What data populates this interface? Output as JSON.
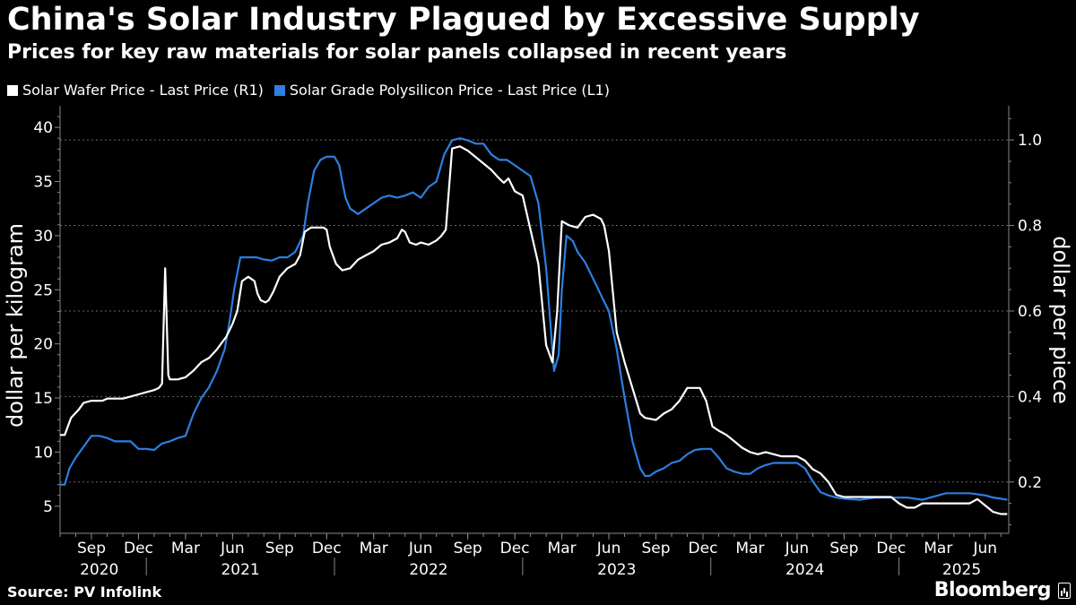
{
  "header": {
    "title": "China's Solar Industry Plagued by Excessive Supply",
    "subtitle": "Prices for key raw materials for solar panels collapsed in recent years"
  },
  "legend": [
    {
      "label": "Solar Wafer Price - Last Price (R1)",
      "color": "#ffffff"
    },
    {
      "label": "Solar Grade Polysilicon Price - Last Price (L1)",
      "color": "#2d7fe0"
    }
  ],
  "footer": {
    "source": "Source: PV Infolink",
    "brand": "Bloomberg"
  },
  "chart_data": {
    "type": "line",
    "title": "China's Solar Industry Plagued by Excessive Supply",
    "x_unit": "months since Jul 2020",
    "ylabel_left": "dollar per kilogram",
    "ylabel_right": "dollar per piece",
    "ylim_left": [
      2.5,
      42
    ],
    "ylim_right": [
      0.08,
      1.08
    ],
    "left_ticks": [
      5,
      10,
      15,
      20,
      25,
      30,
      35,
      40
    ],
    "right_ticks": [
      0.2,
      0.4,
      0.6,
      0.8,
      1.0
    ],
    "right_tick_labels": [
      "0.2",
      "0.4",
      "0.6",
      "0.8",
      "1.0"
    ],
    "grid": "horizontal dashed at right-axis ticks",
    "xlim": [
      0,
      60.5
    ],
    "month_ticks": [
      {
        "label": "Sep",
        "x": 2
      },
      {
        "label": "Dec",
        "x": 5
      },
      {
        "label": "Mar",
        "x": 8
      },
      {
        "label": "Jun",
        "x": 11
      },
      {
        "label": "Sep",
        "x": 14
      },
      {
        "label": "Dec",
        "x": 17
      },
      {
        "label": "Mar",
        "x": 20
      },
      {
        "label": "Jun",
        "x": 23
      },
      {
        "label": "Sep",
        "x": 26
      },
      {
        "label": "Dec",
        "x": 29
      },
      {
        "label": "Mar",
        "x": 32
      },
      {
        "label": "Jun",
        "x": 35
      },
      {
        "label": "Sep",
        "x": 38
      },
      {
        "label": "Dec",
        "x": 41
      },
      {
        "label": "Mar",
        "x": 44
      },
      {
        "label": "Jun",
        "x": 47
      },
      {
        "label": "Sep",
        "x": 50
      },
      {
        "label": "Dec",
        "x": 53
      },
      {
        "label": "Mar",
        "x": 56
      },
      {
        "label": "Jun",
        "x": 59
      }
    ],
    "year_labels": [
      {
        "label": "2020",
        "x": 2.5
      },
      {
        "label": "2021",
        "x": 11.5
      },
      {
        "label": "2022",
        "x": 23.5
      },
      {
        "label": "2023",
        "x": 35.5
      },
      {
        "label": "2024",
        "x": 47.5
      },
      {
        "label": "2025",
        "x": 57.5
      }
    ],
    "year_separators": [
      6,
      18,
      30,
      42,
      54
    ],
    "series": [
      {
        "name": "Solar Wafer Price - Last Price (R1)",
        "axis": "right",
        "color": "#ffffff",
        "points": [
          [
            0,
            0.31
          ],
          [
            0.3,
            0.31
          ],
          [
            0.7,
            0.35
          ],
          [
            1.2,
            0.37
          ],
          [
            1.5,
            0.385
          ],
          [
            2,
            0.39
          ],
          [
            2.7,
            0.39
          ],
          [
            3,
            0.395
          ],
          [
            4,
            0.395
          ],
          [
            4.5,
            0.4
          ],
          [
            5,
            0.405
          ],
          [
            5.5,
            0.41
          ],
          [
            6,
            0.415
          ],
          [
            6.3,
            0.42
          ],
          [
            6.5,
            0.43
          ],
          [
            6.7,
            0.7
          ],
          [
            6.9,
            0.45
          ],
          [
            7,
            0.44
          ],
          [
            7.5,
            0.44
          ],
          [
            8,
            0.445
          ],
          [
            8.5,
            0.46
          ],
          [
            9,
            0.48
          ],
          [
            9.5,
            0.49
          ],
          [
            10,
            0.51
          ],
          [
            10.3,
            0.525
          ],
          [
            10.6,
            0.54
          ],
          [
            11,
            0.57
          ],
          [
            11.3,
            0.6
          ],
          [
            11.6,
            0.67
          ],
          [
            12,
            0.68
          ],
          [
            12.4,
            0.67
          ],
          [
            12.6,
            0.64
          ],
          [
            12.8,
            0.625
          ],
          [
            13.1,
            0.62
          ],
          [
            13.3,
            0.625
          ],
          [
            13.6,
            0.645
          ],
          [
            14,
            0.68
          ],
          [
            14.5,
            0.7
          ],
          [
            15,
            0.71
          ],
          [
            15.3,
            0.73
          ],
          [
            15.6,
            0.785
          ],
          [
            16,
            0.795
          ],
          [
            16.8,
            0.795
          ],
          [
            17,
            0.79
          ],
          [
            17.2,
            0.75
          ],
          [
            17.6,
            0.71
          ],
          [
            18,
            0.695
          ],
          [
            18.5,
            0.7
          ],
          [
            19,
            0.72
          ],
          [
            19.5,
            0.73
          ],
          [
            20,
            0.74
          ],
          [
            20.5,
            0.755
          ],
          [
            21,
            0.76
          ],
          [
            21.5,
            0.77
          ],
          [
            21.8,
            0.79
          ],
          [
            22,
            0.785
          ],
          [
            22.3,
            0.76
          ],
          [
            22.7,
            0.755
          ],
          [
            23,
            0.76
          ],
          [
            23.5,
            0.755
          ],
          [
            24,
            0.765
          ],
          [
            24.3,
            0.775
          ],
          [
            24.6,
            0.79
          ],
          [
            25,
            0.98
          ],
          [
            25.5,
            0.985
          ],
          [
            26,
            0.975
          ],
          [
            26.5,
            0.96
          ],
          [
            27,
            0.945
          ],
          [
            27.5,
            0.93
          ],
          [
            28,
            0.91
          ],
          [
            28.3,
            0.9
          ],
          [
            28.6,
            0.91
          ],
          [
            29,
            0.88
          ],
          [
            29.5,
            0.87
          ],
          [
            30,
            0.79
          ],
          [
            30.5,
            0.71
          ],
          [
            31,
            0.52
          ],
          [
            31.4,
            0.48
          ],
          [
            31.7,
            0.6
          ],
          [
            32,
            0.81
          ],
          [
            32.5,
            0.8
          ],
          [
            33,
            0.795
          ],
          [
            33.5,
            0.82
          ],
          [
            34,
            0.825
          ],
          [
            34.5,
            0.815
          ],
          [
            34.7,
            0.8
          ],
          [
            35,
            0.74
          ],
          [
            35.5,
            0.55
          ],
          [
            36,
            0.48
          ],
          [
            36.5,
            0.42
          ],
          [
            37,
            0.36
          ],
          [
            37.3,
            0.35
          ],
          [
            38,
            0.345
          ],
          [
            38.5,
            0.36
          ],
          [
            39,
            0.37
          ],
          [
            39.5,
            0.39
          ],
          [
            40,
            0.42
          ],
          [
            40.8,
            0.42
          ],
          [
            41.2,
            0.39
          ],
          [
            41.6,
            0.33
          ],
          [
            42,
            0.32
          ],
          [
            42.5,
            0.31
          ],
          [
            43,
            0.295
          ],
          [
            43.5,
            0.28
          ],
          [
            44,
            0.27
          ],
          [
            44.5,
            0.265
          ],
          [
            45,
            0.27
          ],
          [
            46,
            0.26
          ],
          [
            46.5,
            0.26
          ],
          [
            47,
            0.26
          ],
          [
            47.5,
            0.25
          ],
          [
            48,
            0.23
          ],
          [
            48.5,
            0.22
          ],
          [
            49,
            0.2
          ],
          [
            49.5,
            0.17
          ],
          [
            50,
            0.165
          ],
          [
            51,
            0.165
          ],
          [
            52,
            0.165
          ],
          [
            53,
            0.165
          ],
          [
            53.5,
            0.15
          ],
          [
            54,
            0.14
          ],
          [
            54.5,
            0.14
          ],
          [
            55,
            0.15
          ],
          [
            56,
            0.15
          ],
          [
            57,
            0.15
          ],
          [
            58,
            0.15
          ],
          [
            58.5,
            0.16
          ],
          [
            59,
            0.145
          ],
          [
            59.5,
            0.13
          ],
          [
            60,
            0.125
          ],
          [
            60.4,
            0.125
          ]
        ]
      },
      {
        "name": "Solar Grade Polysilicon Price - Last Price (L1)",
        "axis": "left",
        "color": "#2d7fe0",
        "points": [
          [
            0,
            7
          ],
          [
            0.3,
            7
          ],
          [
            0.6,
            8.5
          ],
          [
            1,
            9.5
          ],
          [
            1.5,
            10.5
          ],
          [
            2,
            11.5
          ],
          [
            2.5,
            11.5
          ],
          [
            3,
            11.3
          ],
          [
            3.5,
            11
          ],
          [
            4,
            11
          ],
          [
            4.5,
            11
          ],
          [
            5,
            10.3
          ],
          [
            5.5,
            10.3
          ],
          [
            6,
            10.2
          ],
          [
            6.5,
            10.8
          ],
          [
            7,
            11
          ],
          [
            7.5,
            11.3
          ],
          [
            8,
            11.5
          ],
          [
            8.5,
            13.5
          ],
          [
            9,
            15
          ],
          [
            9.5,
            16
          ],
          [
            10,
            17.5
          ],
          [
            10.5,
            19.5
          ],
          [
            10.8,
            22
          ],
          [
            11.1,
            25
          ],
          [
            11.5,
            28
          ],
          [
            12,
            28
          ],
          [
            12.5,
            28
          ],
          [
            13,
            27.8
          ],
          [
            13.5,
            27.7
          ],
          [
            14,
            28
          ],
          [
            14.5,
            28
          ],
          [
            15,
            28.5
          ],
          [
            15.5,
            30
          ],
          [
            15.8,
            33
          ],
          [
            16.2,
            36
          ],
          [
            16.6,
            37
          ],
          [
            17,
            37.3
          ],
          [
            17.5,
            37.3
          ],
          [
            17.8,
            36.5
          ],
          [
            18.2,
            33.5
          ],
          [
            18.5,
            32.5
          ],
          [
            19,
            32
          ],
          [
            19.5,
            32.5
          ],
          [
            20,
            33
          ],
          [
            20.5,
            33.5
          ],
          [
            21,
            33.7
          ],
          [
            21.5,
            33.5
          ],
          [
            22,
            33.7
          ],
          [
            22.5,
            34
          ],
          [
            23,
            33.5
          ],
          [
            23.5,
            34.5
          ],
          [
            24,
            35
          ],
          [
            24.5,
            37.5
          ],
          [
            25,
            38.8
          ],
          [
            25.5,
            39
          ],
          [
            26,
            38.8
          ],
          [
            26.5,
            38.5
          ],
          [
            27,
            38.5
          ],
          [
            27.5,
            37.5
          ],
          [
            28,
            37
          ],
          [
            28.5,
            37
          ],
          [
            29,
            36.5
          ],
          [
            29.5,
            36
          ],
          [
            30,
            35.5
          ],
          [
            30.5,
            33
          ],
          [
            31,
            27
          ],
          [
            31.5,
            17.5
          ],
          [
            31.8,
            19
          ],
          [
            32,
            25
          ],
          [
            32.3,
            30
          ],
          [
            32.7,
            29.5
          ],
          [
            33,
            28.5
          ],
          [
            33.5,
            27.5
          ],
          [
            34,
            26
          ],
          [
            34.5,
            24.5
          ],
          [
            35,
            23
          ],
          [
            35.5,
            19.5
          ],
          [
            36,
            15
          ],
          [
            36.5,
            11
          ],
          [
            37,
            8.5
          ],
          [
            37.3,
            7.8
          ],
          [
            37.6,
            7.8
          ],
          [
            38,
            8.2
          ],
          [
            38.5,
            8.5
          ],
          [
            39,
            9
          ],
          [
            39.5,
            9.2
          ],
          [
            40,
            9.8
          ],
          [
            40.5,
            10.2
          ],
          [
            41,
            10.3
          ],
          [
            41.5,
            10.3
          ],
          [
            42,
            9.5
          ],
          [
            42.5,
            8.5
          ],
          [
            43,
            8.2
          ],
          [
            43.5,
            8
          ],
          [
            44,
            8
          ],
          [
            44.5,
            8.5
          ],
          [
            45,
            8.8
          ],
          [
            45.5,
            9
          ],
          [
            46,
            9
          ],
          [
            46.5,
            9
          ],
          [
            47,
            9
          ],
          [
            47.5,
            8.5
          ],
          [
            48,
            7.3
          ],
          [
            48.5,
            6.3
          ],
          [
            49,
            6
          ],
          [
            49.5,
            5.8
          ],
          [
            50,
            5.7
          ],
          [
            51,
            5.6
          ],
          [
            52,
            5.8
          ],
          [
            53,
            5.8
          ],
          [
            54,
            5.8
          ],
          [
            55,
            5.6
          ],
          [
            56,
            6
          ],
          [
            56.5,
            6.2
          ],
          [
            57,
            6.2
          ],
          [
            58,
            6.2
          ],
          [
            59,
            6
          ],
          [
            59.5,
            5.8
          ],
          [
            60,
            5.7
          ],
          [
            60.4,
            5.6
          ]
        ]
      }
    ]
  }
}
